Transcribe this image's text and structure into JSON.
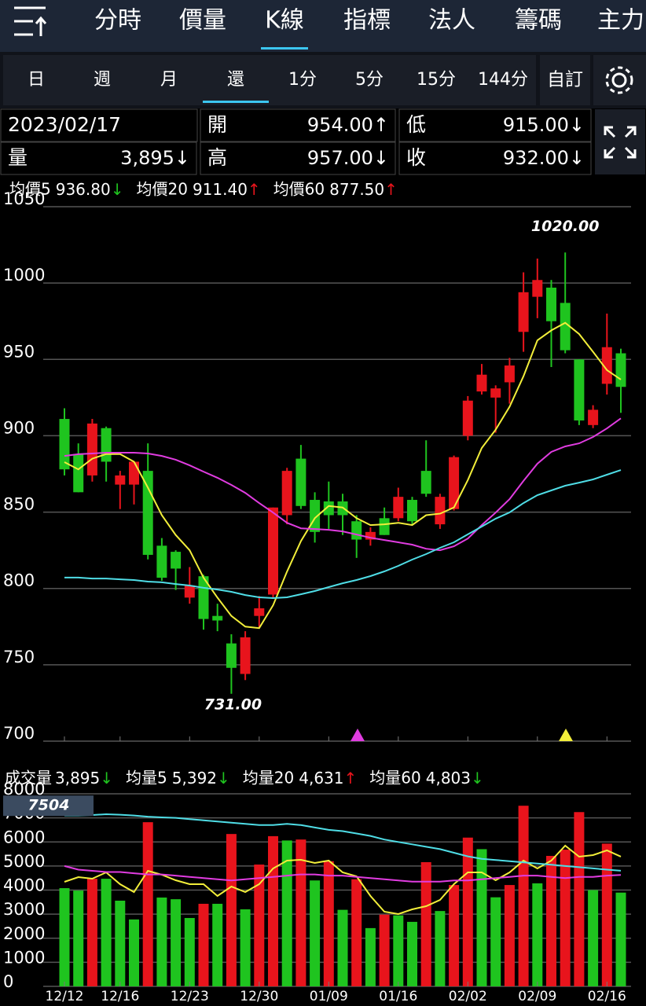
{
  "tabs": {
    "items": [
      "分時",
      "價量",
      "K線",
      "指標",
      "法人",
      "籌碼",
      "主力"
    ],
    "active": 2
  },
  "subtabs": {
    "items": [
      "日",
      "週",
      "月",
      "還",
      "1分",
      "5分",
      "15分",
      "144分"
    ],
    "custom": "自訂",
    "active": 3
  },
  "info": {
    "date": "2023/02/17",
    "quote": [
      {
        "label": "開",
        "value": "954.00↑"
      },
      {
        "label": "低",
        "value": "915.00↓"
      },
      {
        "label": "量",
        "value": "3,895↓"
      },
      {
        "label": "高",
        "value": "957.00↓"
      },
      {
        "label": "收",
        "value": "932.00↓"
      }
    ]
  },
  "chart_data": [
    {
      "type": "candlestick",
      "up_color": "#e8141c",
      "down_color": "#1fc41f",
      "grid": true,
      "open": [
        911,
        888,
        874,
        905,
        868,
        868,
        877,
        828,
        824,
        794,
        808,
        782,
        764,
        744,
        782,
        796,
        848,
        885,
        858,
        857,
        857,
        844,
        832,
        846,
        846,
        858,
        877,
        842,
        852,
        900,
        929,
        925,
        935,
        968,
        991,
        997,
        987,
        950,
        907,
        934,
        954
      ],
      "high": [
        918,
        895,
        911,
        906,
        877,
        883,
        895,
        833,
        825,
        814,
        809,
        790,
        770,
        772,
        795,
        853,
        879,
        894,
        863,
        870,
        862,
        848,
        840,
        853,
        866,
        860,
        897,
        862,
        887,
        926,
        947,
        933,
        951,
        1007,
        1016,
        1002,
        1020,
        950,
        920,
        980,
        957
      ],
      "low": [
        874,
        863,
        870,
        870,
        852,
        855,
        819,
        805,
        799,
        790,
        773,
        772,
        731,
        740,
        774,
        794,
        842,
        852,
        830,
        839,
        835,
        820,
        828,
        835,
        844,
        842,
        860,
        839,
        851,
        897,
        927,
        902,
        921,
        955,
        977,
        945,
        954,
        907,
        905,
        927,
        915
      ],
      "close": [
        878,
        863,
        908,
        883,
        874,
        883,
        822,
        807,
        813,
        802,
        780,
        779,
        748,
        768,
        787,
        853,
        877,
        854,
        837,
        848,
        848,
        832,
        837,
        835,
        860,
        844,
        862,
        860,
        886,
        923,
        940,
        931,
        946,
        994,
        1002,
        975,
        956,
        910,
        917,
        958,
        932
      ],
      "series": [
        {
          "name": "均價5",
          "color": "#f2ee3a",
          "legend_value": "936.80↓",
          "values": [
            882.7,
            878,
            885,
            888,
            888,
            883,
            866,
            848,
            835,
            825,
            807,
            794,
            782,
            775,
            774,
            789,
            811,
            831,
            846,
            854,
            853,
            846,
            841.5,
            842,
            843,
            841.5,
            848,
            849,
            853,
            871,
            892,
            904,
            919,
            939,
            962.5,
            969,
            974,
            966.6,
            955,
            943,
            936.8
          ]
        },
        {
          "name": "均價20",
          "color": "#e03ce0",
          "legend_value": "911.40↑",
          "values": [
            886.8,
            887.9,
            888.4,
            888.9,
            888.9,
            888.9,
            888.4,
            886.8,
            884.3,
            880.6,
            876.5,
            872.5,
            867.8,
            862.6,
            855.9,
            849.7,
            843,
            839.4,
            838.9,
            838.4,
            837.4,
            835.3,
            833.2,
            831.7,
            830.2,
            828.7,
            826,
            825,
            827.6,
            832.7,
            841.5,
            849.7,
            858.5,
            870.4,
            881.7,
            889.4,
            893,
            895,
            899.2,
            904.8,
            911.4
          ]
        },
        {
          "name": "均價60",
          "color": "#4fdde6",
          "legend_value": "877.50↑",
          "values": [
            807.1,
            807.1,
            806.5,
            806.5,
            806,
            805.5,
            804.5,
            804,
            802.9,
            801.9,
            800.4,
            799.3,
            797.8,
            795.7,
            794.2,
            793.7,
            794.2,
            796.2,
            798.3,
            800.9,
            803.4,
            805.5,
            808.1,
            811.2,
            814.8,
            818.9,
            822.5,
            826.6,
            830.2,
            835.4,
            840.5,
            845.7,
            849.8,
            855.9,
            861.1,
            864.2,
            867.3,
            869.3,
            871.4,
            874.5,
            877.5
          ]
        }
      ],
      "ylim": [
        700,
        1050
      ],
      "yticks": [
        700,
        750,
        800,
        850,
        900,
        950,
        1000,
        1050
      ],
      "annotations": [
        {
          "text": "1020.00",
          "value": 1020,
          "index": 36,
          "color": "#e8141c"
        },
        {
          "text": "731.00",
          "value": 731,
          "index": 12,
          "color": "#1fc41f"
        }
      ]
    },
    {
      "type": "bar",
      "name": "成交量",
      "value_label": "3,895↓",
      "categories": [
        "12/12",
        null,
        null,
        null,
        "12/16",
        null,
        null,
        null,
        null,
        "12/23",
        null,
        null,
        null,
        null,
        "12/30",
        null,
        null,
        null,
        null,
        "01/09",
        null,
        null,
        null,
        null,
        "01/16",
        null,
        null,
        null,
        null,
        "02/02",
        null,
        null,
        null,
        null,
        "02/09",
        null,
        null,
        null,
        null,
        "02/16",
        null
      ],
      "values": [
        4080,
        3980,
        4470,
        4470,
        3560,
        2780,
        6820,
        3690,
        3620,
        2840,
        3430,
        3430,
        6330,
        3200,
        5060,
        6240,
        6060,
        6100,
        4400,
        5200,
        3180,
        4450,
        2420,
        2980,
        2950,
        2680,
        5160,
        3130,
        4210,
        6180,
        5700,
        3700,
        4210,
        7504,
        4280,
        5420,
        5680,
        7240,
        4000,
        5930,
        3895
      ],
      "colors": [
        "#1fc41f",
        "#1fc41f",
        "#e8141c",
        "#1fc41f",
        "#1fc41f",
        "#1fc41f",
        "#e8141c",
        "#1fc41f",
        "#1fc41f",
        "#1fc41f",
        "#e8141c",
        "#1fc41f",
        "#e8141c",
        "#1fc41f",
        "#e8141c",
        "#e8141c",
        "#1fc41f",
        "#e8141c",
        "#1fc41f",
        "#e8141c",
        "#1fc41f",
        "#e8141c",
        "#1fc41f",
        "#e8141c",
        "#1fc41f",
        "#1fc41f",
        "#e8141c",
        "#1fc41f",
        "#e8141c",
        "#e8141c",
        "#1fc41f",
        "#1fc41f",
        "#e8141c",
        "#e8141c",
        "#1fc41f",
        "#e8141c",
        "#e8141c",
        "#e8141c",
        "#1fc41f",
        "#e8141c",
        "#1fc41f"
      ],
      "series": [
        {
          "name": "均量5",
          "color": "#f2ee3a",
          "legend_value": "5,392↓",
          "values": [
            4343,
            4539,
            4473,
            4735,
            4245,
            3918,
            4800,
            4637,
            4408,
            4245,
            4245,
            3755,
            4147,
            3918,
            4245,
            4898,
            5224,
            5257,
            5127,
            5224,
            4735,
            4571,
            3755,
            3102,
            3004,
            3200,
            3331,
            3592,
            4245,
            4735,
            4735,
            4408,
            4735,
            5224,
            4898,
            5224,
            5845,
            5388,
            5453,
            5649,
            5392
          ]
        },
        {
          "name": "均量20",
          "color": "#e03ce0",
          "legend_value": "4,631↑",
          "values": [
            5000,
            4850,
            4800,
            4750,
            4750,
            4700,
            4650,
            4650,
            4600,
            4550,
            4500,
            4450,
            4400,
            4450,
            4500,
            4550,
            4600,
            4650,
            4650,
            4600,
            4600,
            4550,
            4500,
            4450,
            4400,
            4350,
            4350,
            4350,
            4400,
            4400,
            4450,
            4500,
            4550,
            4600,
            4600,
            4550,
            4500,
            4550,
            4550,
            4600,
            4631
          ]
        },
        {
          "name": "均量60",
          "color": "#4fdde6",
          "legend_value": "4,803↓",
          "values": [
            7100,
            7100,
            7120,
            7150,
            7130,
            7100,
            7050,
            7020,
            7000,
            6950,
            6900,
            6850,
            6800,
            6750,
            6700,
            6700,
            6750,
            6700,
            6600,
            6500,
            6450,
            6350,
            6250,
            6100,
            6000,
            5900,
            5800,
            5700,
            5550,
            5400,
            5300,
            5250,
            5200,
            5150,
            5100,
            5050,
            5000,
            4950,
            4900,
            4850,
            4803
          ]
        }
      ],
      "ylim": [
        0,
        8000
      ],
      "yticks": [
        0,
        1000,
        2000,
        3000,
        4000,
        5000,
        6000,
        7000,
        8000
      ],
      "max_marker": 7504,
      "grid": true
    }
  ]
}
